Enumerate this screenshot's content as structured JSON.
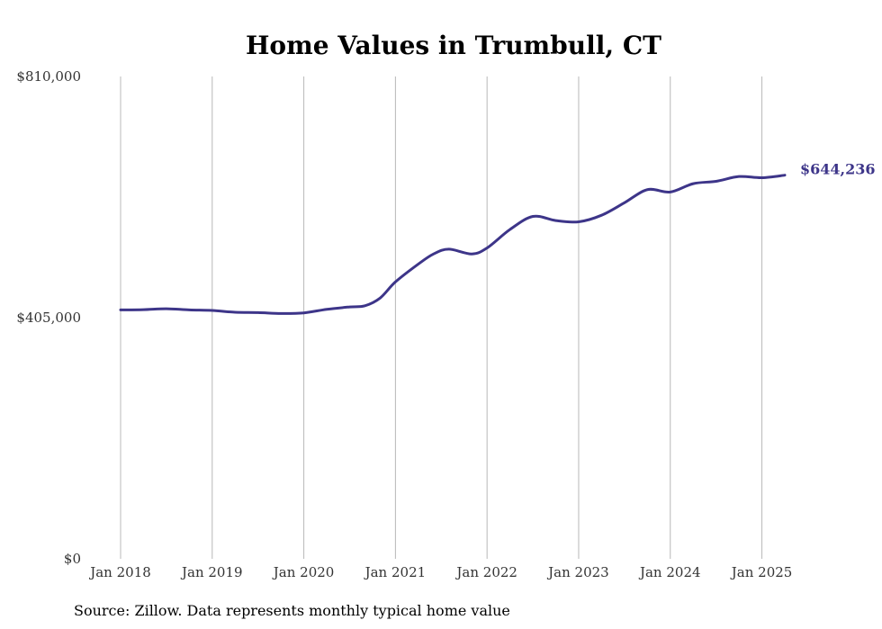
{
  "chart_data": {
    "type": "line",
    "title": "Home Values in Trumbull, CT",
    "source": "Source: Zillow. Data represents monthly typical home value",
    "x_ticks": [
      "Jan 2018",
      "Jan 2019",
      "Jan 2020",
      "Jan 2021",
      "Jan 2022",
      "Jan 2023",
      "Jan 2024",
      "Jan 2025"
    ],
    "y_ticks": [
      {
        "value": 0,
        "label": "$0"
      },
      {
        "value": 405000,
        "label": "$405,000"
      },
      {
        "value": 810000,
        "label": "$810,000"
      }
    ],
    "ylim": [
      0,
      810000
    ],
    "xlim": [
      "2018-01",
      "2025-04"
    ],
    "grid": "vertical",
    "line_color": "#3d3589",
    "end_label": "$644,236",
    "series": [
      {
        "x": [
          "2018-01",
          "2018-04",
          "2018-07",
          "2018-10",
          "2019-01",
          "2019-04",
          "2019-07",
          "2019-10",
          "2020-01",
          "2020-04",
          "2020-07",
          "2020-09",
          "2020-11",
          "2021-01",
          "2021-04",
          "2021-06",
          "2021-08",
          "2021-11",
          "2022-01",
          "2022-04",
          "2022-07",
          "2022-10",
          "2023-01",
          "2023-04",
          "2023-07",
          "2023-10",
          "2024-01",
          "2024-04",
          "2024-07",
          "2024-10",
          "2025-01",
          "2025-04"
        ],
        "y": [
          418000,
          418500,
          420000,
          418000,
          417000,
          414000,
          413500,
          412000,
          413000,
          419000,
          423000,
          425000,
          438000,
          465000,
          495000,
          512000,
          520000,
          512000,
          522000,
          553000,
          575000,
          568000,
          566000,
          577000,
          598000,
          620000,
          616000,
          630000,
          634000,
          642000,
          640000,
          644236
        ]
      }
    ]
  }
}
